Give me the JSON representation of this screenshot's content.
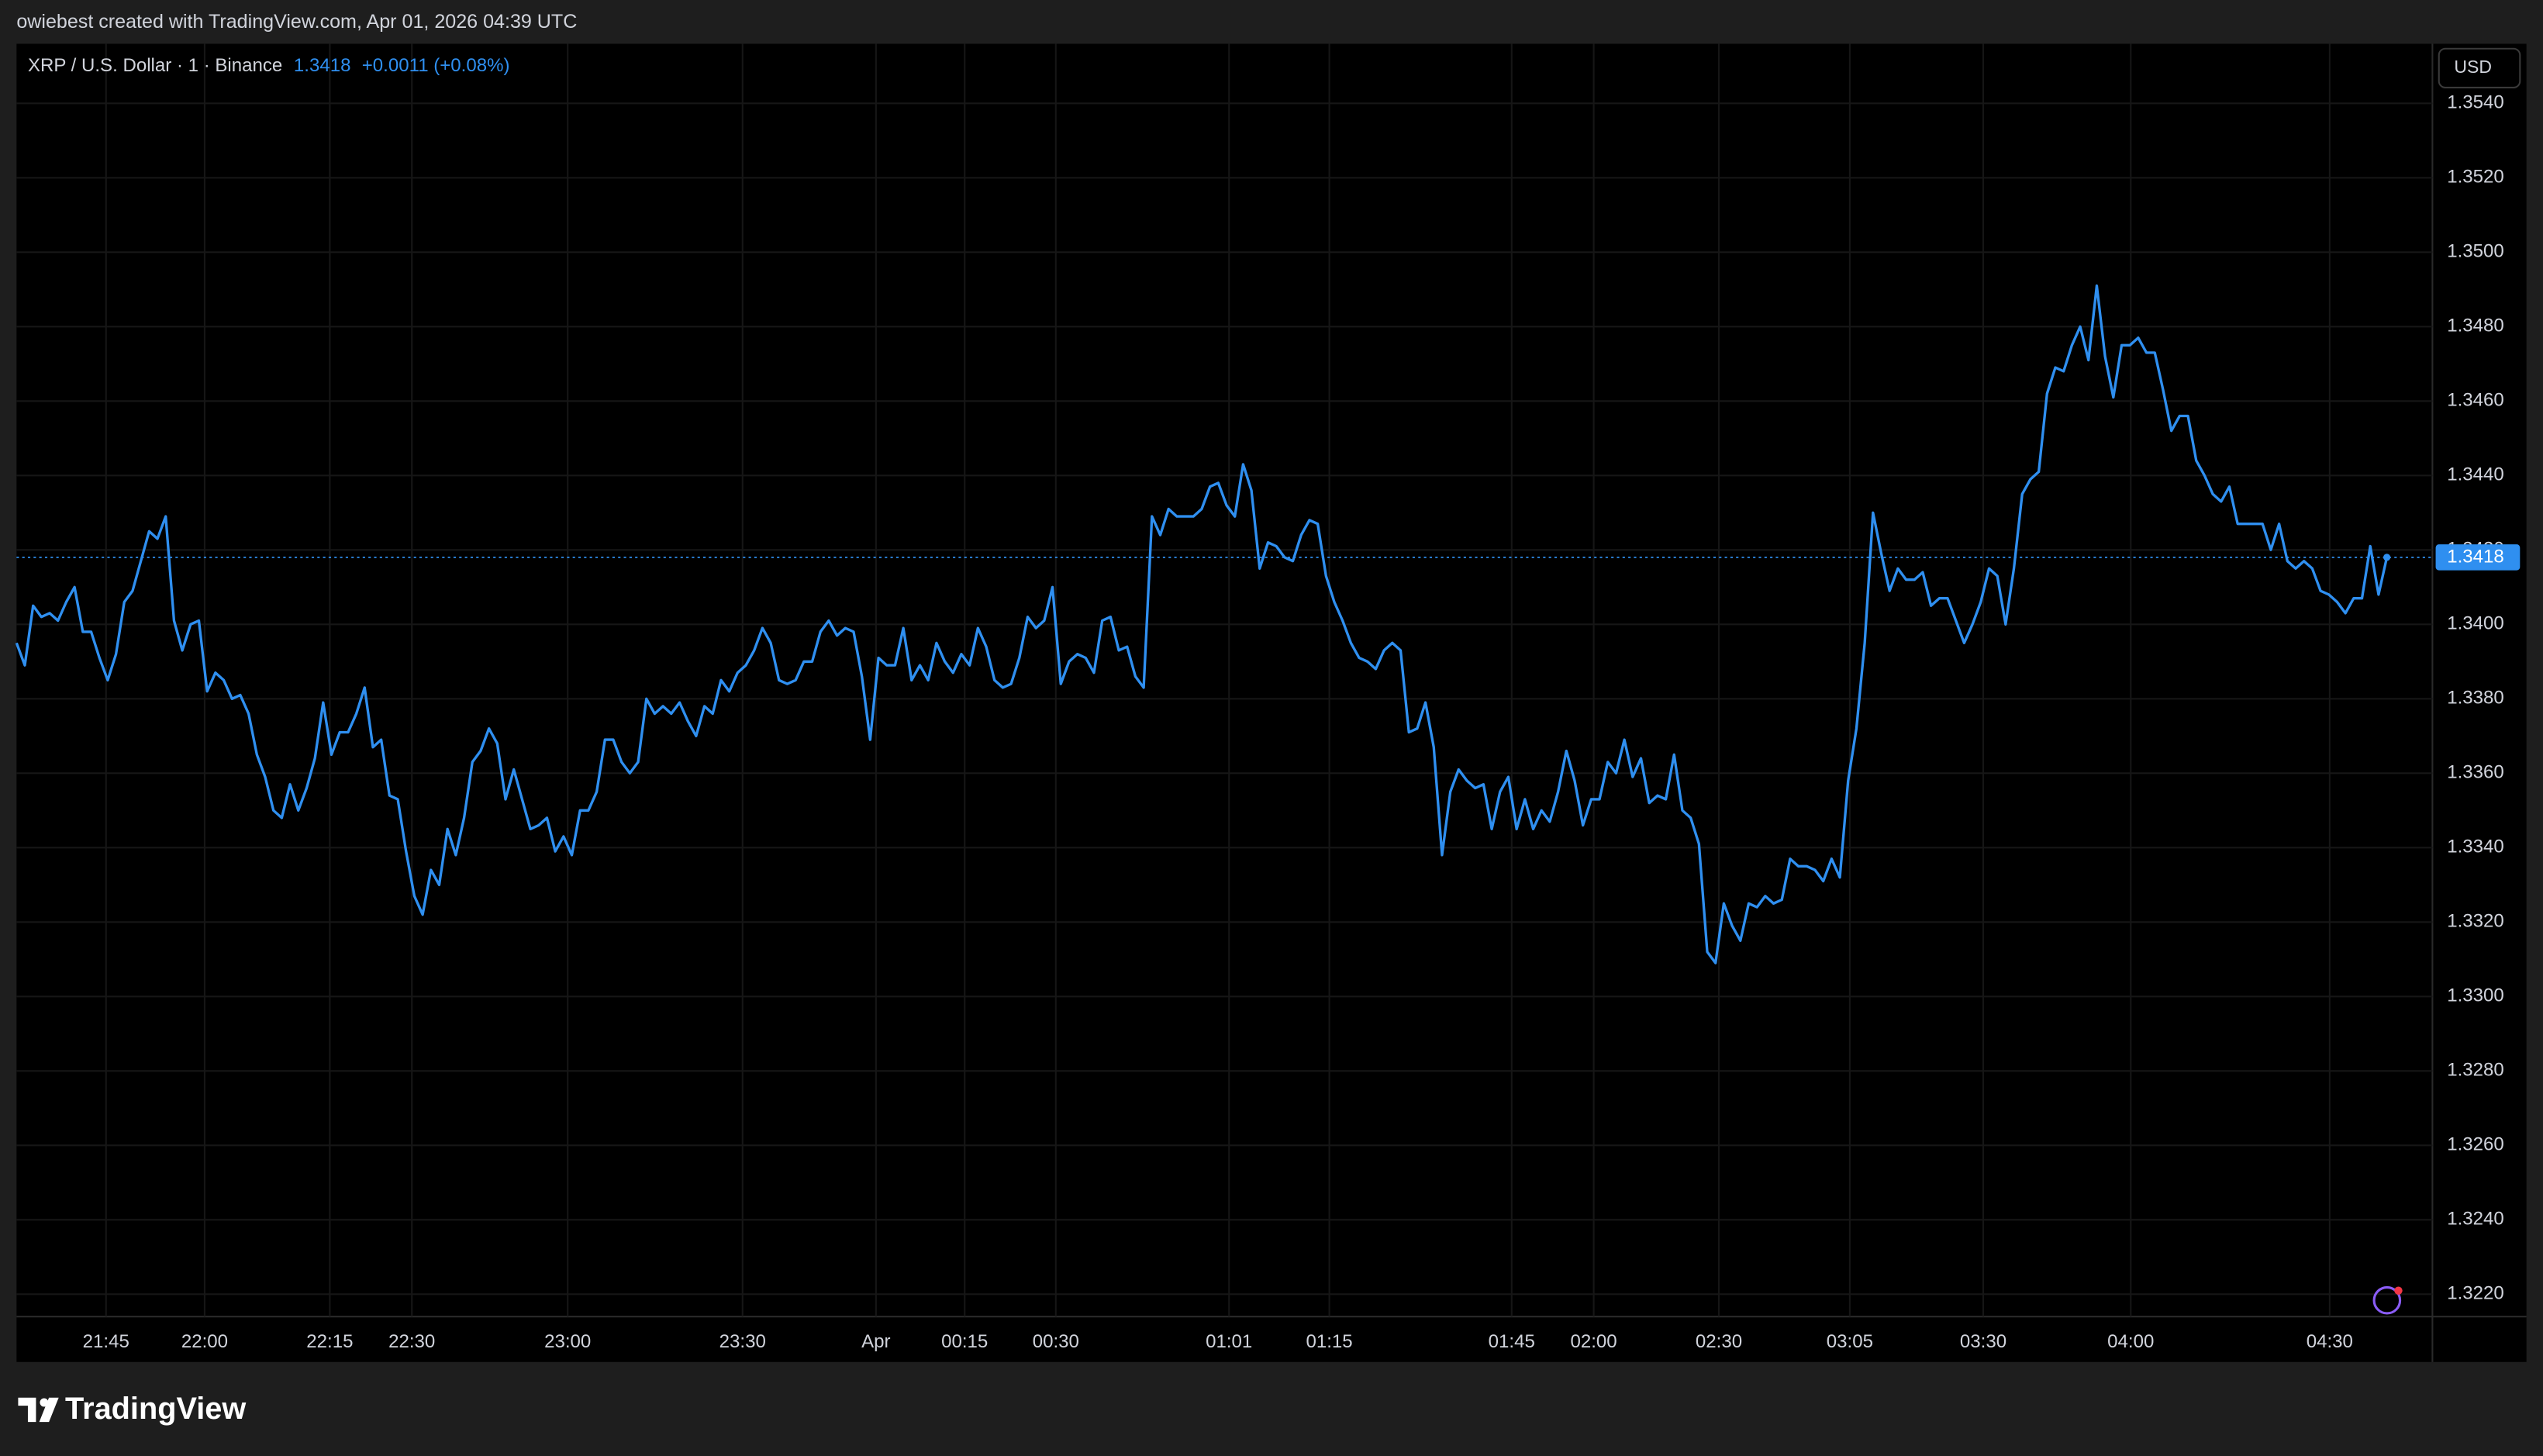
{
  "header": "owiebest created with TradingView.com, Apr 01, 2026 04:39 UTC",
  "footer": "TradingView",
  "chart_data": {
    "type": "line",
    "title": "XRP / U.S. Dollar · 1 · Binance",
    "change": "+0.0011 (+0.08%)",
    "currency": "USD",
    "xlim": [
      0,
      291.5
    ],
    "ylim": [
      1.3214,
      1.3556
    ],
    "grid": true,
    "xticks": [
      {
        "value": 10.8,
        "label": "21:45"
      },
      {
        "value": 22.7,
        "label": "22:00"
      },
      {
        "value": 37.8,
        "label": "22:15"
      },
      {
        "value": 47.7,
        "label": "22:30"
      },
      {
        "value": 66.5,
        "label": "23:00"
      },
      {
        "value": 87.6,
        "label": "23:30"
      },
      {
        "value": 103.7,
        "label": "Apr"
      },
      {
        "value": 114.4,
        "label": "00:15"
      },
      {
        "value": 125.4,
        "label": "00:30"
      },
      {
        "value": 146.3,
        "label": "01:01"
      },
      {
        "value": 158.4,
        "label": "01:15"
      },
      {
        "value": 180.4,
        "label": "01:45"
      },
      {
        "value": 190.3,
        "label": "02:00"
      },
      {
        "value": 205.4,
        "label": "02:30"
      },
      {
        "value": 221.2,
        "label": "03:05"
      },
      {
        "value": 237.3,
        "label": "03:30"
      },
      {
        "value": 255.1,
        "label": "04:00"
      },
      {
        "value": 279.1,
        "label": "04:30"
      }
    ],
    "yticks": [
      {
        "value": 1.354,
        "label": "1.3540"
      },
      {
        "value": 1.352,
        "label": "1.3520"
      },
      {
        "value": 1.35,
        "label": "1.3500"
      },
      {
        "value": 1.348,
        "label": "1.3480"
      },
      {
        "value": 1.346,
        "label": "1.3460"
      },
      {
        "value": 1.344,
        "label": "1.3440"
      },
      {
        "value": 1.342,
        "label": "1.3420"
      },
      {
        "value": 1.34,
        "label": "1.3400"
      },
      {
        "value": 1.338,
        "label": "1.3380"
      },
      {
        "value": 1.336,
        "label": "1.3360"
      },
      {
        "value": 1.334,
        "label": "1.3340"
      },
      {
        "value": 1.332,
        "label": "1.3320"
      },
      {
        "value": 1.33,
        "label": "1.3300"
      },
      {
        "value": 1.328,
        "label": "1.3280"
      },
      {
        "value": 1.326,
        "label": "1.3260"
      },
      {
        "value": 1.324,
        "label": "1.3240"
      },
      {
        "value": 1.322,
        "label": "1.3220"
      }
    ],
    "series": [
      {
        "name": "XRP",
        "color": "#2f8ff0",
        "values": [
          1.3395,
          1.3389,
          1.3405,
          1.3402,
          1.3403,
          1.3401,
          1.3406,
          1.341,
          1.3398,
          1.3398,
          1.3391,
          1.3385,
          1.3392,
          1.3406,
          1.3409,
          1.3417,
          1.3425,
          1.3423,
          1.3429,
          1.3401,
          1.3393,
          1.34,
          1.3401,
          1.3382,
          1.3387,
          1.3385,
          1.338,
          1.3381,
          1.3376,
          1.3365,
          1.3359,
          1.335,
          1.3348,
          1.3357,
          1.335,
          1.3356,
          1.3364,
          1.3379,
          1.3365,
          1.3371,
          1.3371,
          1.3376,
          1.3383,
          1.3367,
          1.3369,
          1.3354,
          1.3353,
          1.3339,
          1.3327,
          1.3322,
          1.3334,
          1.333,
          1.3345,
          1.3338,
          1.3348,
          1.3363,
          1.3366,
          1.3372,
          1.3368,
          1.3353,
          1.3361,
          1.3353,
          1.3345,
          1.3346,
          1.3348,
          1.3339,
          1.3343,
          1.3338,
          1.335,
          1.335,
          1.3355,
          1.3369,
          1.3369,
          1.3363,
          1.336,
          1.3363,
          1.338,
          1.3376,
          1.3378,
          1.3376,
          1.3379,
          1.3374,
          1.337,
          1.3378,
          1.3376,
          1.3385,
          1.3382,
          1.3387,
          1.3389,
          1.3393,
          1.3399,
          1.3395,
          1.3385,
          1.3384,
          1.3385,
          1.339,
          1.339,
          1.3398,
          1.3401,
          1.3397,
          1.3399,
          1.3398,
          1.3386,
          1.3369,
          1.3391,
          1.3389,
          1.3389,
          1.3399,
          1.3385,
          1.3389,
          1.3385,
          1.3395,
          1.339,
          1.3387,
          1.3392,
          1.3389,
          1.3399,
          1.3394,
          1.3385,
          1.3383,
          1.3384,
          1.3391,
          1.3402,
          1.3399,
          1.3401,
          1.341,
          1.3384,
          1.339,
          1.3392,
          1.3391,
          1.3387,
          1.3401,
          1.3402,
          1.3393,
          1.3394,
          1.3386,
          1.3383,
          1.3429,
          1.3424,
          1.3431,
          1.3429,
          1.3429,
          1.3429,
          1.3431,
          1.3437,
          1.3438,
          1.3432,
          1.3429,
          1.3443,
          1.3436,
          1.3415,
          1.3422,
          1.3421,
          1.3418,
          1.3417,
          1.3424,
          1.3428,
          1.3427,
          1.3413,
          1.3406,
          1.3401,
          1.3395,
          1.3391,
          1.339,
          1.3388,
          1.3393,
          1.3395,
          1.3393,
          1.3371,
          1.3372,
          1.3379,
          1.3367,
          1.3338,
          1.3355,
          1.3361,
          1.3358,
          1.3356,
          1.3357,
          1.3345,
          1.3355,
          1.3359,
          1.3345,
          1.3353,
          1.3345,
          1.335,
          1.3347,
          1.3355,
          1.3366,
          1.3358,
          1.3346,
          1.3353,
          1.3353,
          1.3363,
          1.336,
          1.3369,
          1.3359,
          1.3364,
          1.3352,
          1.3354,
          1.3353,
          1.3365,
          1.335,
          1.3348,
          1.3341,
          1.3312,
          1.3309,
          1.3325,
          1.3319,
          1.3315,
          1.3325,
          1.3324,
          1.3327,
          1.3325,
          1.3326,
          1.3337,
          1.3335,
          1.3335,
          1.3334,
          1.3331,
          1.3337,
          1.3332,
          1.3358,
          1.3372,
          1.3395,
          1.343,
          1.3419,
          1.3409,
          1.3415,
          1.3412,
          1.3412,
          1.3414,
          1.3405,
          1.3407,
          1.3407,
          1.3401,
          1.3395,
          1.34,
          1.3406,
          1.3415,
          1.3413,
          1.34,
          1.3415,
          1.3435,
          1.3439,
          1.3441,
          1.3462,
          1.3469,
          1.3468,
          1.3475,
          1.348,
          1.3471,
          1.3491,
          1.3472,
          1.3461,
          1.3475,
          1.3475,
          1.3477,
          1.3473,
          1.3473,
          1.3463,
          1.3452,
          1.3456,
          1.3456,
          1.3444,
          1.344,
          1.3435,
          1.3433,
          1.3437,
          1.3427,
          1.3427,
          1.3427,
          1.3427,
          1.342,
          1.3427,
          1.3417,
          1.3415,
          1.3417,
          1.3415,
          1.3409,
          1.3408,
          1.3406,
          1.3403,
          1.3407,
          1.3407,
          1.3421,
          1.3408,
          1.3418
        ]
      }
    ]
  }
}
